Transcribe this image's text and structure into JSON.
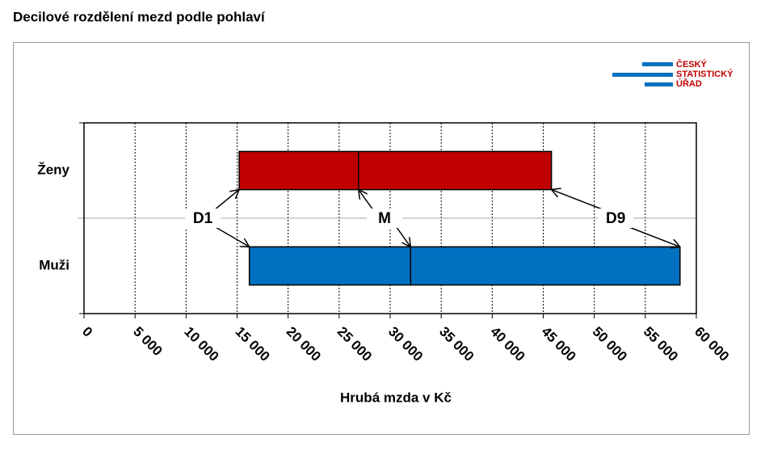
{
  "chart_data": {
    "type": "range_bar",
    "title": "Decilové rozdělení mezd podle pohlaví",
    "x_label": "Hrubá mzda v Kč",
    "logo_lines": [
      "ČESKÝ",
      "STATISTICKÝ",
      "ÚŘAD"
    ],
    "categories": [
      "Ženy",
      "Muži"
    ],
    "colors": [
      "#c00000",
      "#0070c0"
    ],
    "series": [
      {
        "name": "D1",
        "values": [
          15200,
          16200
        ]
      },
      {
        "name": "M",
        "values": [
          26900,
          32000
        ]
      },
      {
        "name": "D9",
        "values": [
          45800,
          58400
        ]
      }
    ],
    "xlim": [
      0,
      60000
    ],
    "xticks": [
      0,
      {
        "value": 5000,
        "label": "5 000"
      },
      {
        "value": 10000,
        "label": "10 000"
      },
      {
        "value": 15000,
        "label": "15 000"
      },
      {
        "value": 20000,
        "label": "20 000"
      },
      {
        "value": 25000,
        "label": "25 000"
      },
      {
        "value": 30000,
        "label": "30 000"
      },
      {
        "value": 35000,
        "label": "35 000"
      },
      {
        "value": 40000,
        "label": "40 000"
      },
      {
        "value": 45000,
        "label": "45 000"
      },
      {
        "value": 50000,
        "label": "50 000"
      },
      {
        "value": 55000,
        "label": "55 000"
      },
      {
        "value": 60000,
        "label": "60 000"
      }
    ],
    "grid": true
  }
}
